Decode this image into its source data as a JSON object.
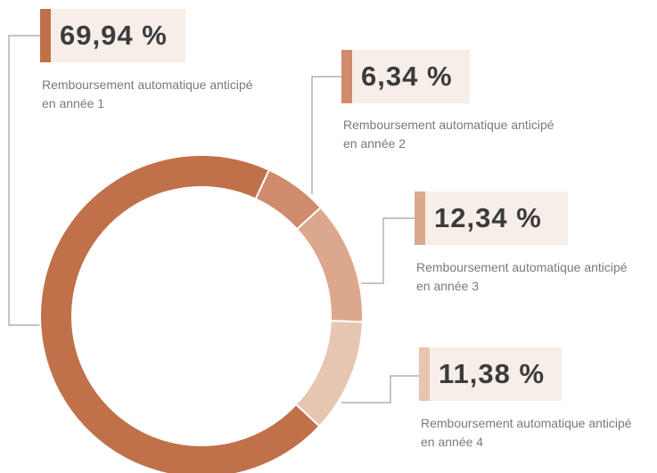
{
  "chart_data": {
    "type": "donut",
    "categories": [
      "Remboursement automatique anticipé en année 1",
      "Remboursement automatique anticipé en année 2",
      "Remboursement automatique anticipé en année 3",
      "Remboursement automatique anticipé en année 4"
    ],
    "values": [
      69.94,
      6.34,
      12.34,
      11.38
    ],
    "value_labels": [
      "69,94 %",
      "6,34 %",
      "12,34 %",
      "11,38 %"
    ],
    "colors": [
      "#c0714a",
      "#cf8b6b",
      "#dca88d",
      "#e6c5b1"
    ]
  }
}
